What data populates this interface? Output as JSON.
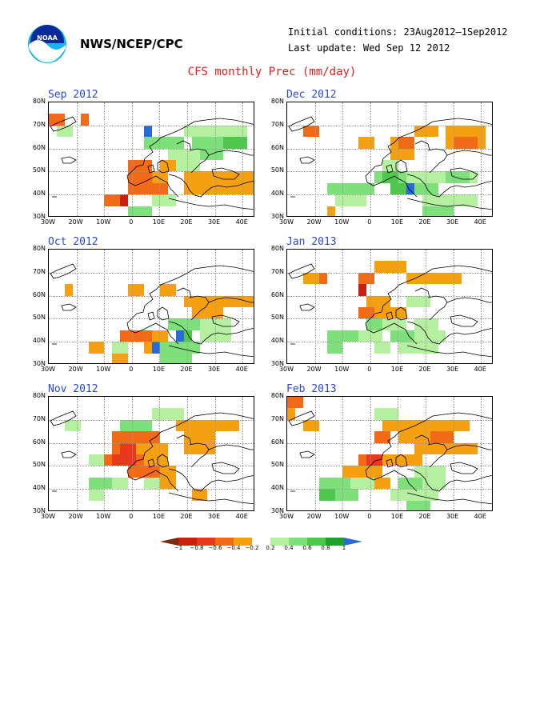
{
  "header": {
    "org": "NWS/NCEP/CPC",
    "initial": "Initial conditions: 23Aug2012–1Sep2012",
    "update": "Last update: Wed Sep 12 2012",
    "title": "CFS monthly Prec (mm/day)"
  },
  "logo": {
    "name": "noaa-logo-icon",
    "text": "NOAA"
  },
  "lat_labels": [
    "80N",
    "70N",
    "60N",
    "50N",
    "40N",
    "30N"
  ],
  "lon_labels": [
    "30W",
    "20W",
    "10W",
    "0",
    "10E",
    "20E",
    "30E",
    "40E"
  ],
  "colors": {
    "m1": "#a01a0c",
    "m08": "#c81f10",
    "m06": "#e8391e",
    "m04": "#f06a18",
    "m02": "#f5a010",
    "p02": "#b4f0a0",
    "p04": "#7ee07a",
    "p06": "#4ec84c",
    "p08": "#20a028",
    "p1": "#2a6ad8"
  },
  "colorbar": {
    "labels": [
      "−1",
      "−0.8",
      "−0.6",
      "−0.4",
      "−0.2",
      "0.2",
      "0.4",
      "0.6",
      "0.8",
      "1"
    ],
    "colors": [
      "#7a2a10",
      "#c81f10",
      "#e8391e",
      "#f06a18",
      "#f5a010",
      "#ffffff",
      "#b4f0a0",
      "#7ee07a",
      "#4ec84c",
      "#20a028",
      "#2a6ad8"
    ]
  },
  "panels": [
    {
      "title": "Sep 2012",
      "cells": [
        [
          "m04",
          0,
          1,
          2,
          1
        ],
        [
          "m04",
          4,
          1,
          1,
          1
        ],
        [
          "p02",
          1,
          2,
          2,
          1
        ],
        [
          "p1",
          12,
          2,
          1,
          1
        ],
        [
          "p04",
          12,
          3,
          5,
          1
        ],
        [
          "p02",
          17,
          2,
          8,
          1
        ],
        [
          "p04",
          18,
          3,
          4,
          2
        ],
        [
          "p06",
          22,
          3,
          3,
          1
        ],
        [
          "p02",
          15,
          4,
          4,
          1
        ],
        [
          "m02",
          14,
          5,
          2,
          1
        ],
        [
          "p02",
          16,
          5,
          3,
          1
        ],
        [
          "m04",
          10,
          5,
          3,
          2
        ],
        [
          "m04",
          11,
          6,
          2,
          1
        ],
        [
          "m02",
          13,
          6,
          2,
          1
        ],
        [
          "m02",
          17,
          6,
          9,
          1
        ],
        [
          "m04",
          10,
          7,
          5,
          1
        ],
        [
          "m04",
          7,
          8,
          3,
          1
        ],
        [
          "m08",
          9,
          8,
          1,
          1
        ],
        [
          "m02",
          17,
          7,
          5,
          1
        ],
        [
          "m02",
          22,
          7,
          4,
          1
        ],
        [
          "p04",
          10,
          9,
          3,
          1
        ],
        [
          "p02",
          13,
          8,
          3,
          1
        ],
        [
          "p02",
          7,
          10,
          4,
          1
        ],
        [
          "p04",
          8,
          10,
          2,
          1
        ]
      ]
    },
    {
      "title": "Dec 2012",
      "cells": [
        [
          "m04",
          2,
          2,
          2,
          1
        ],
        [
          "m02",
          9,
          3,
          2,
          1
        ],
        [
          "m02",
          13,
          3,
          3,
          2
        ],
        [
          "m04",
          14,
          3,
          2,
          1
        ],
        [
          "m02",
          16,
          2,
          3,
          1
        ],
        [
          "m02",
          20,
          2,
          5,
          2
        ],
        [
          "m04",
          21,
          3,
          3,
          1
        ],
        [
          "p02",
          12,
          5,
          2,
          1
        ],
        [
          "p04",
          11,
          6,
          4,
          1
        ],
        [
          "p06",
          12,
          6,
          2,
          1
        ],
        [
          "p02",
          15,
          6,
          4,
          1
        ],
        [
          "p02",
          19,
          6,
          5,
          1
        ],
        [
          "p04",
          20,
          6,
          3,
          1
        ],
        [
          "p04",
          5,
          7,
          6,
          1
        ],
        [
          "p02",
          6,
          8,
          4,
          1
        ],
        [
          "p06",
          13,
          7,
          3,
          1
        ],
        [
          "p1",
          15,
          7,
          1,
          1
        ],
        [
          "p04",
          16,
          7,
          3,
          1
        ],
        [
          "m02",
          5,
          9,
          1,
          1
        ],
        [
          "p02",
          17,
          8,
          7,
          1
        ],
        [
          "p04",
          17,
          9,
          4,
          1
        ]
      ]
    },
    {
      "title": "Oct 2012",
      "cells": [
        [
          "m02",
          2,
          3,
          1,
          1
        ],
        [
          "m02",
          10,
          3,
          2,
          1
        ],
        [
          "m02",
          14,
          3,
          2,
          1
        ],
        [
          "m02",
          17,
          4,
          9,
          1
        ],
        [
          "m02",
          18,
          5,
          4,
          1
        ],
        [
          "m04",
          9,
          7,
          4,
          1
        ],
        [
          "m02",
          13,
          7,
          2,
          1
        ],
        [
          "p04",
          15,
          6,
          4,
          1
        ],
        [
          "p06",
          16,
          7,
          2,
          1
        ],
        [
          "p1",
          16,
          7,
          1,
          1
        ],
        [
          "p02",
          19,
          6,
          4,
          2
        ],
        [
          "m02",
          5,
          8,
          2,
          1
        ],
        [
          "p02",
          8,
          8,
          2,
          1
        ],
        [
          "m02",
          12,
          8,
          2,
          1
        ],
        [
          "p1",
          13,
          8,
          1,
          1
        ],
        [
          "p04",
          14,
          8,
          5,
          1
        ],
        [
          "p04",
          14,
          9,
          4,
          1
        ],
        [
          "m02",
          8,
          9,
          2,
          1
        ]
      ]
    },
    {
      "title": "Jan 2013",
      "cells": [
        [
          "m02",
          2,
          2,
          2,
          1
        ],
        [
          "m04",
          4,
          2,
          1,
          1
        ],
        [
          "m08",
          9,
          3,
          1,
          1
        ],
        [
          "m04",
          9,
          2,
          2,
          1
        ],
        [
          "m02",
          11,
          1,
          4,
          1
        ],
        [
          "m02",
          15,
          2,
          7,
          1
        ],
        [
          "m02",
          10,
          4,
          3,
          1
        ],
        [
          "m04",
          9,
          5,
          2,
          1
        ],
        [
          "m02",
          11,
          5,
          4,
          1
        ],
        [
          "p02",
          15,
          4,
          3,
          1
        ],
        [
          "p02",
          12,
          6,
          3,
          1
        ],
        [
          "p04",
          10,
          6,
          2,
          1
        ],
        [
          "p02",
          16,
          6,
          3,
          1
        ],
        [
          "p04",
          5,
          7,
          4,
          1
        ],
        [
          "p02",
          9,
          7,
          3,
          1
        ],
        [
          "p04",
          13,
          7,
          3,
          1
        ],
        [
          "p02",
          16,
          7,
          4,
          1
        ],
        [
          "p04",
          5,
          8,
          2,
          1
        ],
        [
          "p02",
          11,
          8,
          2,
          1
        ],
        [
          "p02",
          14,
          8,
          5,
          1
        ]
      ]
    },
    {
      "title": "Nov 2012",
      "cells": [
        [
          "p02",
          2,
          2,
          2,
          1
        ],
        [
          "p04",
          9,
          2,
          4,
          1
        ],
        [
          "p02",
          13,
          1,
          4,
          1
        ],
        [
          "m04",
          8,
          3,
          3,
          2
        ],
        [
          "m06",
          9,
          4,
          2,
          1
        ],
        [
          "m04",
          11,
          3,
          3,
          1
        ],
        [
          "m02",
          11,
          4,
          4,
          1
        ],
        [
          "m02",
          16,
          2,
          8,
          1
        ],
        [
          "m02",
          17,
          3,
          4,
          2
        ],
        [
          "m04",
          7,
          5,
          5,
          1
        ],
        [
          "m06",
          8,
          5,
          3,
          1
        ],
        [
          "m02",
          12,
          5,
          3,
          1
        ],
        [
          "m04",
          10,
          6,
          4,
          1
        ],
        [
          "m02",
          14,
          6,
          2,
          1
        ],
        [
          "p02",
          5,
          5,
          2,
          1
        ],
        [
          "p1",
          5,
          7,
          1,
          1
        ],
        [
          "p04",
          5,
          7,
          3,
          1
        ],
        [
          "p02",
          8,
          7,
          2,
          1
        ],
        [
          "p02",
          12,
          7,
          2,
          1
        ],
        [
          "m02",
          14,
          7,
          2,
          1
        ],
        [
          "p02",
          5,
          8,
          2,
          1
        ],
        [
          "m02",
          18,
          8,
          2,
          1
        ]
      ]
    },
    {
      "title": "Feb 2013",
      "cells": [
        [
          "m04",
          0,
          0,
          2,
          1
        ],
        [
          "m02",
          0,
          1,
          1,
          1
        ],
        [
          "m02",
          2,
          2,
          2,
          1
        ],
        [
          "p02",
          11,
          1,
          3,
          1
        ],
        [
          "m02",
          12,
          2,
          3,
          1
        ],
        [
          "m04",
          11,
          3,
          2,
          1
        ],
        [
          "m02",
          14,
          2,
          4,
          2
        ],
        [
          "m02",
          18,
          2,
          5,
          1
        ],
        [
          "m04",
          18,
          3,
          3,
          1
        ],
        [
          "m02",
          16,
          4,
          8,
          1
        ],
        [
          "m04",
          9,
          5,
          3,
          1
        ],
        [
          "m06",
          10,
          5,
          2,
          1
        ],
        [
          "m02",
          12,
          5,
          3,
          1
        ],
        [
          "m02",
          15,
          5,
          2,
          1
        ],
        [
          "m02",
          7,
          6,
          5,
          1
        ],
        [
          "m02",
          9,
          7,
          4,
          1
        ],
        [
          "p02",
          16,
          6,
          4,
          1
        ],
        [
          "p04",
          4,
          7,
          4,
          1
        ],
        [
          "p02",
          8,
          7,
          3,
          1
        ],
        [
          "p04",
          14,
          7,
          3,
          1
        ],
        [
          "p02",
          17,
          7,
          3,
          1
        ],
        [
          "p06",
          4,
          8,
          2,
          1
        ],
        [
          "p04",
          6,
          8,
          3,
          1
        ],
        [
          "p02",
          13,
          8,
          6,
          1
        ],
        [
          "p04",
          15,
          9,
          3,
          1
        ]
      ]
    }
  ]
}
